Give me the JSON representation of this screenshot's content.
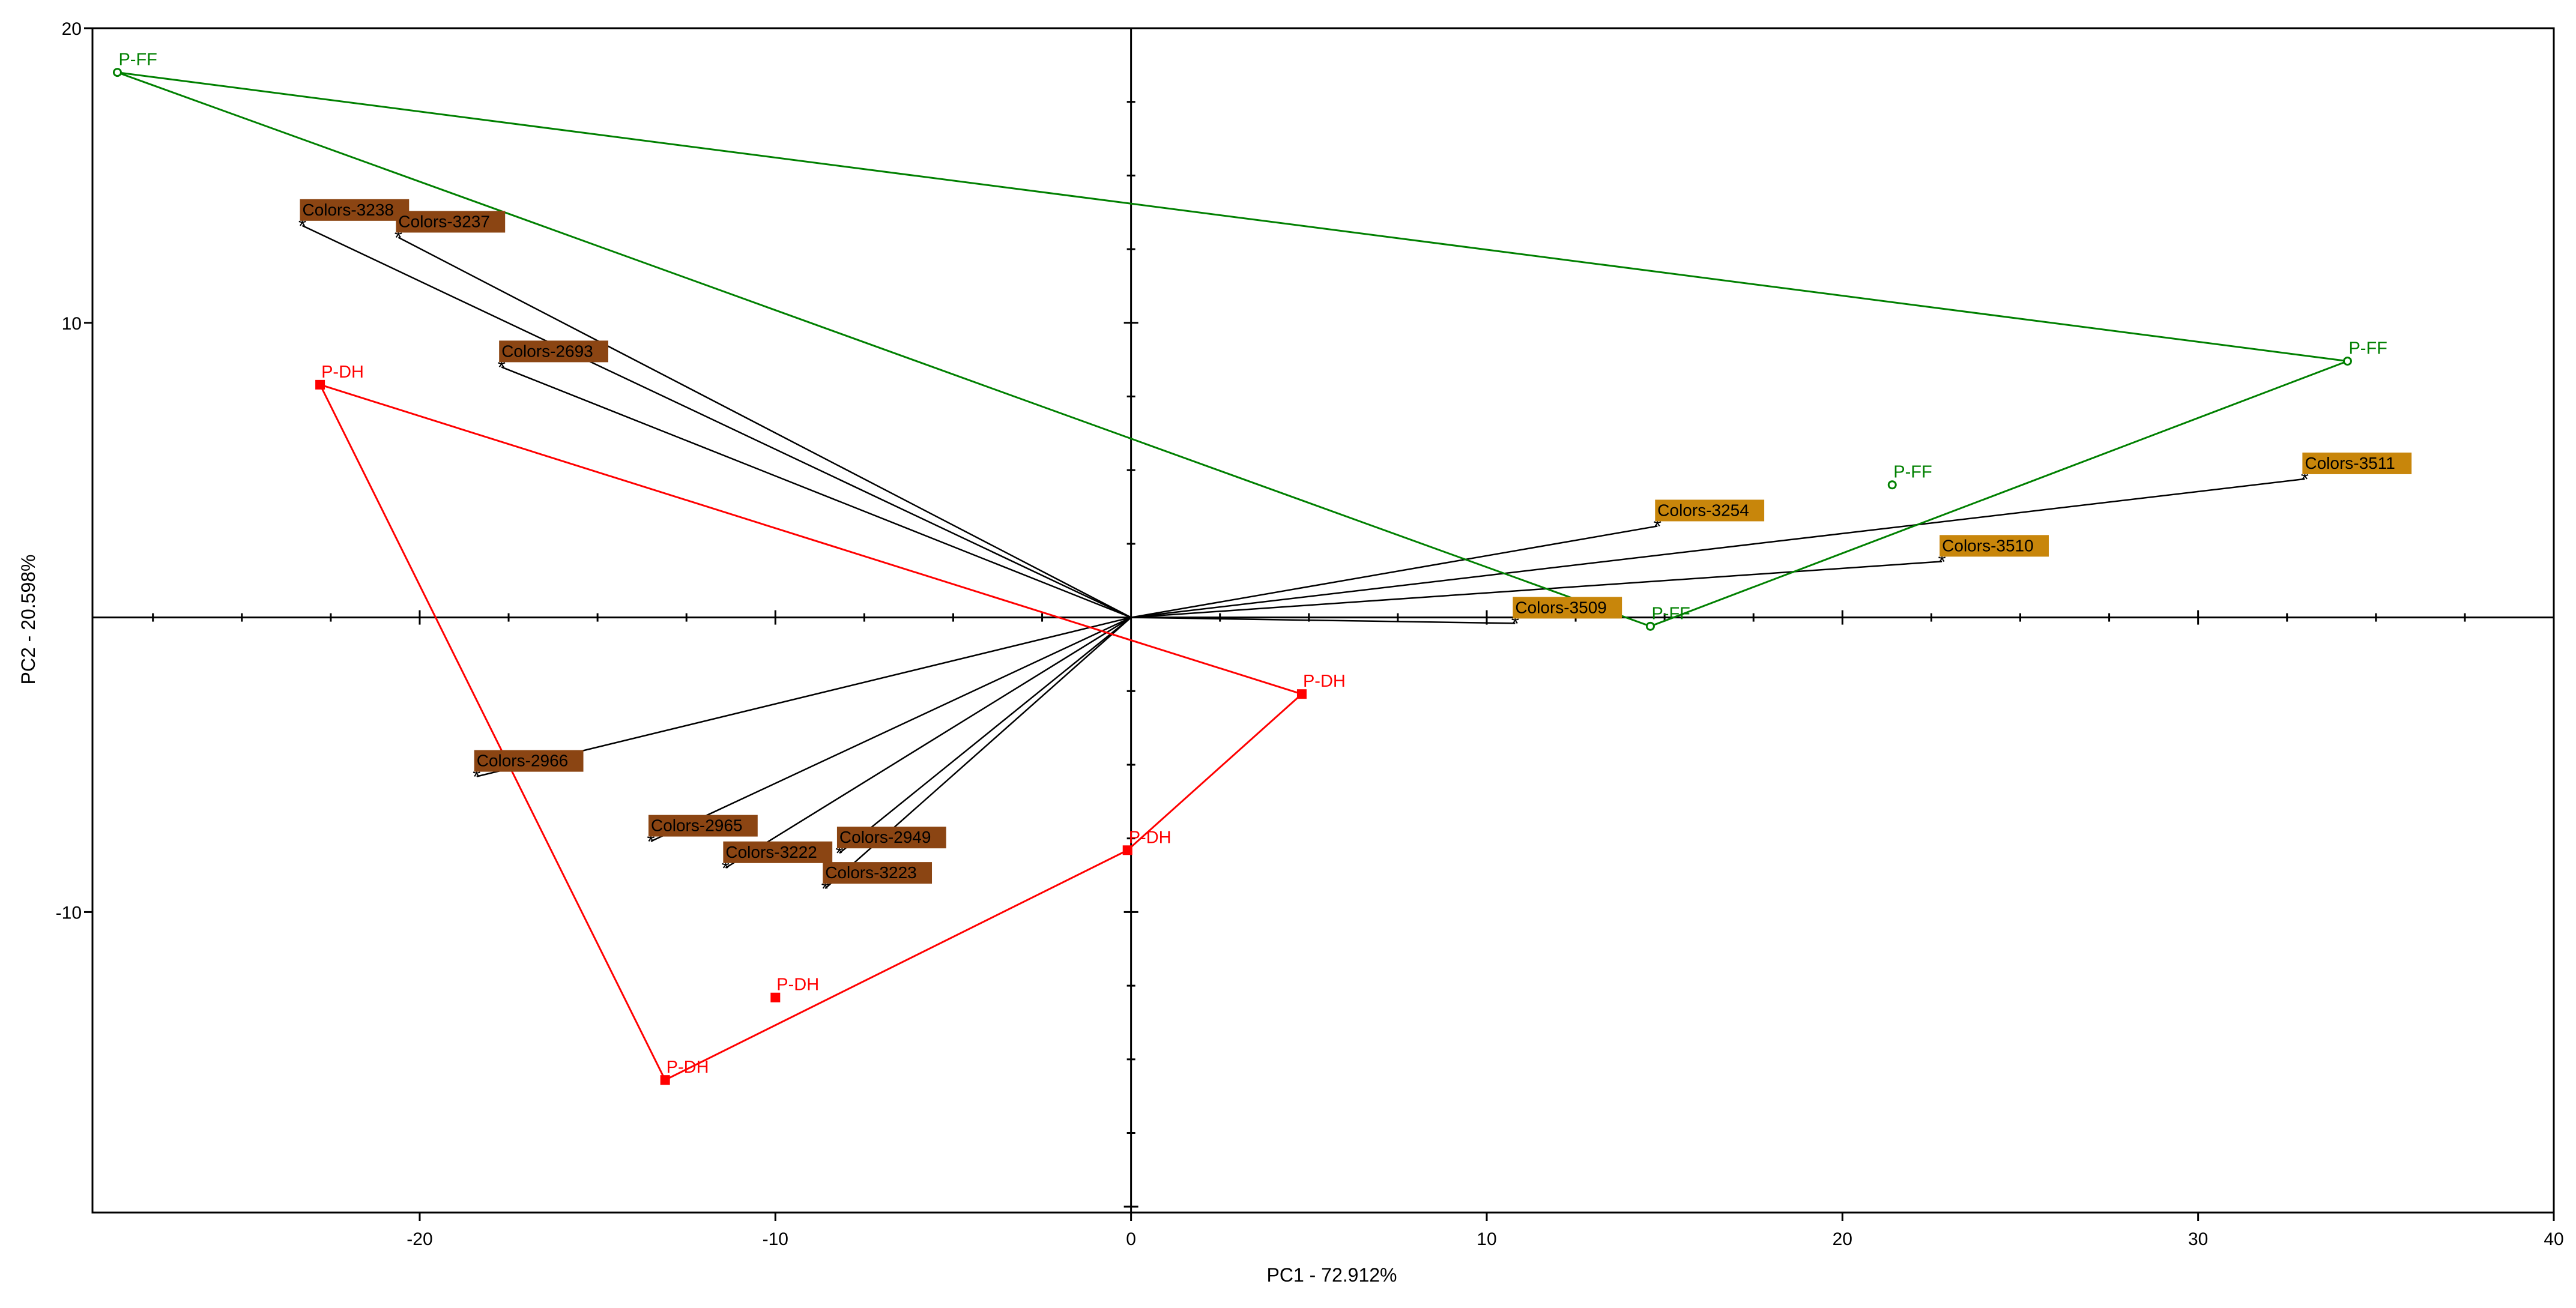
{
  "chart_data": {
    "type": "scatter",
    "subtype": "pca-biplot",
    "title": "",
    "xlabel": "PC1 - 72.912%",
    "ylabel": "PC2 - 20.598%",
    "xlim": [
      -29.2,
      40
    ],
    "ylim": [
      -20.2,
      20
    ],
    "x_ticks": [
      -20,
      -10,
      0,
      10,
      20,
      30,
      40
    ],
    "y_ticks": [
      -10,
      10,
      20
    ],
    "x_minor_step": 2.5,
    "y_minor_step": 2.5,
    "colors": {
      "P-FF": "#008000",
      "P-DH": "#ff0000",
      "loading_line": "#000000",
      "label_bg_left": "#8b4513",
      "label_bg_right": "#c8860b"
    },
    "series": [
      {
        "name": "P-FF",
        "marker": "circle",
        "points": [
          {
            "label": "P-FF",
            "x": -28.5,
            "y": 18.5
          },
          {
            "label": "P-FF",
            "x": 34.2,
            "y": 8.7
          },
          {
            "label": "P-FF",
            "x": 21.4,
            "y": 4.5
          },
          {
            "label": "P-FF",
            "x": 14.6,
            "y": -0.3
          }
        ],
        "hull": [
          0,
          1,
          3
        ]
      },
      {
        "name": "P-DH",
        "marker": "square",
        "points": [
          {
            "label": "P-DH",
            "x": -22.8,
            "y": 7.9
          },
          {
            "label": "P-DH",
            "x": 4.8,
            "y": -2.6
          },
          {
            "label": "P-DH",
            "x": -0.1,
            "y": -7.9
          },
          {
            "label": "P-DH",
            "x": -10.0,
            "y": -12.9
          },
          {
            "label": "P-DH",
            "x": -13.1,
            "y": -15.7
          }
        ],
        "hull": [
          0,
          1,
          2,
          4
        ]
      }
    ],
    "loadings": [
      {
        "label": "Colors-3238",
        "x": -23.3,
        "y": 13.3,
        "side": "left"
      },
      {
        "label": "Colors-3237",
        "x": -20.6,
        "y": 12.9,
        "side": "left"
      },
      {
        "label": "Colors-2693",
        "x": -17.7,
        "y": 8.5,
        "side": "left"
      },
      {
        "label": "Colors-2966",
        "x": -18.4,
        "y": -5.4,
        "side": "left"
      },
      {
        "label": "Colors-2965",
        "x": -13.5,
        "y": -7.6,
        "side": "left"
      },
      {
        "label": "Colors-3222",
        "x": -11.4,
        "y": -8.5,
        "side": "left"
      },
      {
        "label": "Colors-2949",
        "x": -8.2,
        "y": -8.0,
        "side": "left"
      },
      {
        "label": "Colors-3223",
        "x": -8.6,
        "y": -9.2,
        "side": "left"
      },
      {
        "label": "Colors-3254",
        "x": 14.8,
        "y": 3.1,
        "side": "right"
      },
      {
        "label": "Colors-3509",
        "x": 10.8,
        "y": -0.2,
        "side": "right"
      },
      {
        "label": "Colors-3510",
        "x": 22.8,
        "y": 1.9,
        "side": "right"
      },
      {
        "label": "Colors-3511",
        "x": 33.0,
        "y": 4.7,
        "side": "right"
      }
    ]
  }
}
